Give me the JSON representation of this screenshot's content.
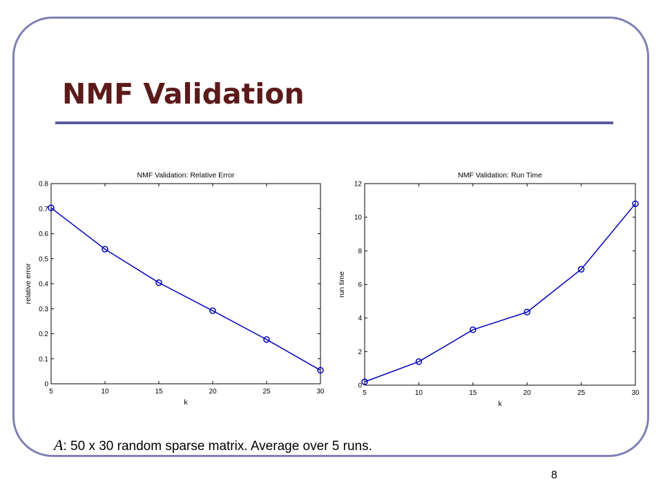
{
  "slide": {
    "title": "NMF Validation",
    "caption_var": "A",
    "caption_text": ": 50 x 30 random sparse matrix.  Average over 5 runs.",
    "page_number": "8",
    "colors": {
      "title": "#5c1a1a",
      "rule": "#5a5aa0",
      "frame": "#7f7fb5",
      "series": "#0000b8"
    }
  },
  "chart_data": [
    {
      "type": "line",
      "title": "NMF Validation: Relative Error",
      "xlabel": "k",
      "ylabel": "relative error",
      "x": [
        5,
        10,
        15,
        20,
        25,
        30
      ],
      "y": [
        0.703,
        0.538,
        0.404,
        0.292,
        0.177,
        0.054
      ],
      "xlim": [
        5,
        30
      ],
      "ylim": [
        0,
        0.8
      ],
      "xticks": [
        5,
        10,
        15,
        20,
        25,
        30
      ],
      "yticks": [
        0,
        0.1,
        0.2,
        0.3,
        0.4,
        0.5,
        0.6,
        0.7,
        0.8
      ],
      "marker": "circle",
      "grid": false
    },
    {
      "type": "line",
      "title": "NMF Validation: Run Time",
      "xlabel": "k",
      "ylabel": "run time",
      "x": [
        5,
        10,
        15,
        20,
        25,
        30
      ],
      "y": [
        0.2,
        1.4,
        3.3,
        4.35,
        6.9,
        10.8
      ],
      "xlim": [
        5,
        30
      ],
      "ylim": [
        0,
        12
      ],
      "xticks": [
        5,
        10,
        15,
        20,
        25,
        30
      ],
      "yticks": [
        0,
        2,
        4,
        6,
        8,
        10,
        12
      ],
      "marker": "circle",
      "grid": false
    }
  ]
}
